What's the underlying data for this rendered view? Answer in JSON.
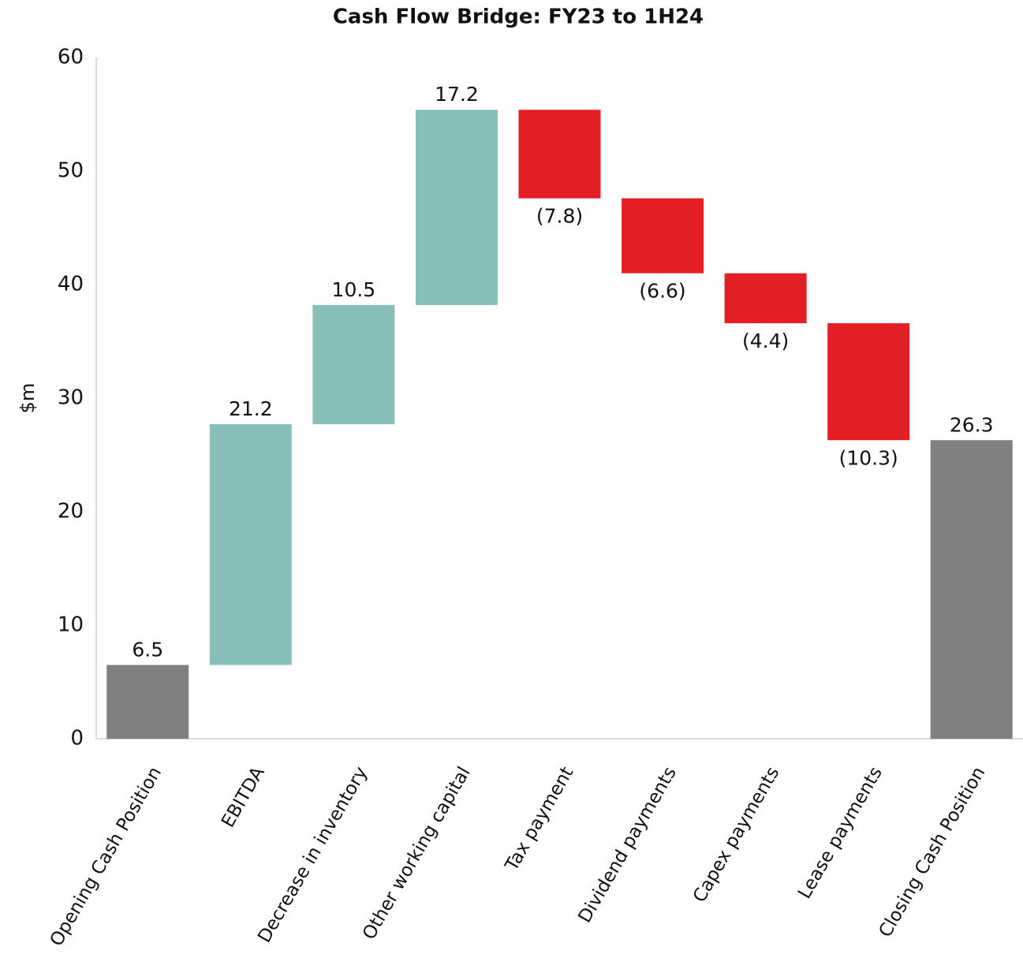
{
  "chart_data": {
    "type": "waterfall",
    "title": "Cash Flow Bridge: FY23 to 1H24",
    "y_label": "$m",
    "categories": [
      "Opening Cash Position",
      "EBITDA",
      "Decrease in inventory",
      "Other working capital",
      "Tax payment",
      "Dividend payments",
      "Capex payments",
      "Lease payments",
      "Closing Cash Position"
    ],
    "values": [
      6.5,
      21.2,
      10.5,
      17.2,
      -7.8,
      -6.6,
      -4.4,
      -10.3,
      26.3
    ],
    "value_labels": [
      "6.5",
      "21.2",
      "10.5",
      "17.2",
      "(7.8)",
      "(6.6)",
      "(4.4)",
      "(10.3)",
      "26.3"
    ],
    "is_total": [
      true,
      false,
      false,
      false,
      false,
      false,
      false,
      false,
      true
    ],
    "colors": [
      "#808080",
      "#88bfba",
      "#88bfba",
      "#88bfba",
      "#e31e24",
      "#e31e24",
      "#e31e24",
      "#e31e24",
      "#808080"
    ],
    "ylim": [
      0,
      60
    ],
    "yticks": [
      0,
      10,
      20,
      30,
      40,
      50,
      60
    ],
    "grid": false
  }
}
